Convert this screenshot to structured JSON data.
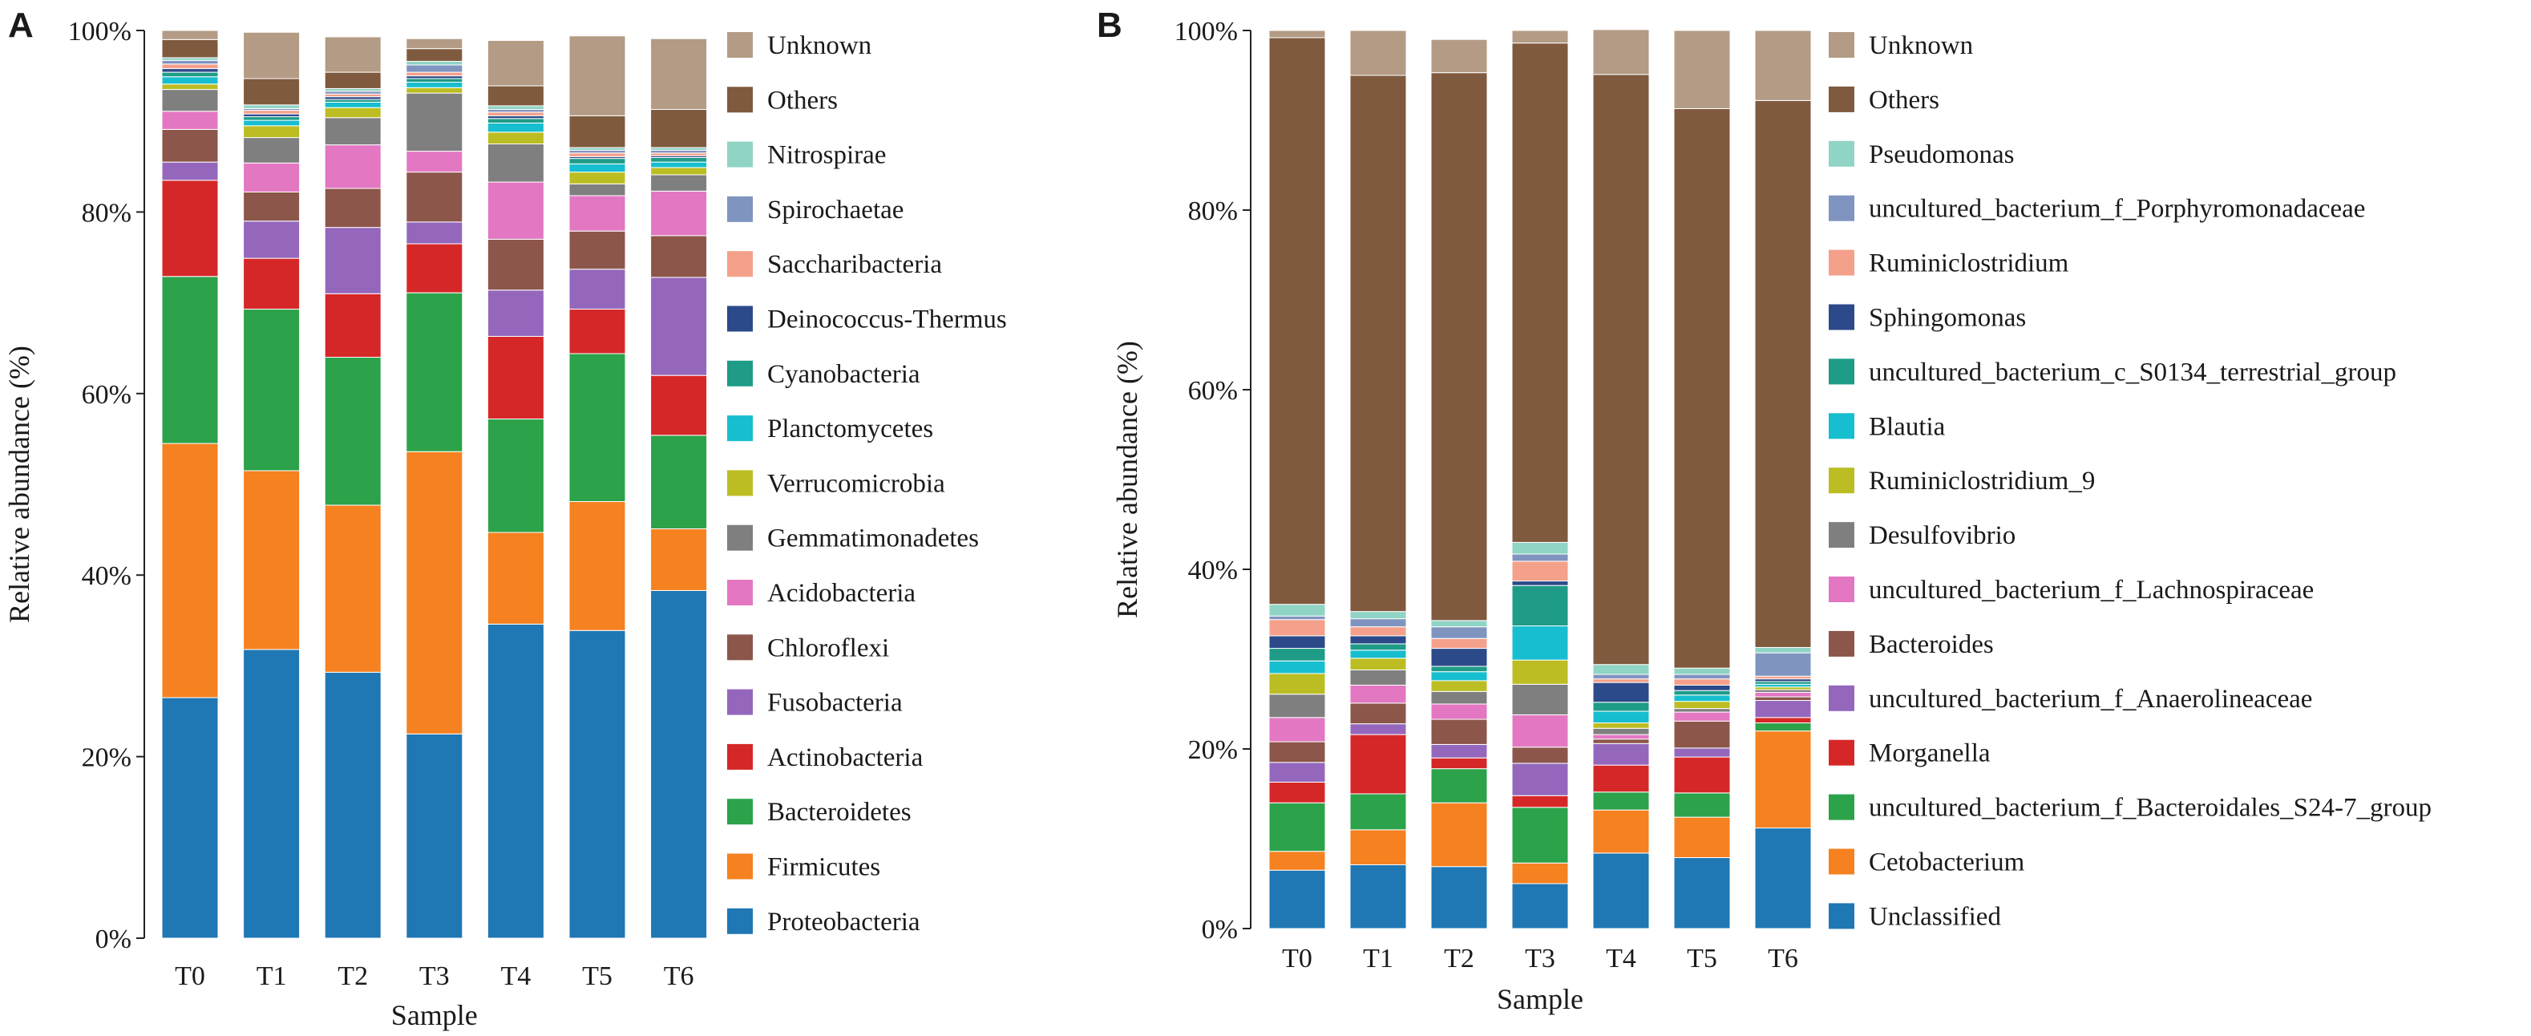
{
  "chart_data": [
    {
      "panel": "A",
      "type": "bar",
      "stacked": true,
      "xlabel": "Sample",
      "ylabel": "Relative abundance (%)",
      "ylim": [
        0,
        100
      ],
      "yticks": [
        "0%",
        "20%",
        "40%",
        "60%",
        "80%",
        "100%"
      ],
      "categories": [
        "T0",
        "T1",
        "T2",
        "T3",
        "T4",
        "T5",
        "T6"
      ],
      "series": [
        {
          "name": "Proteobacteria",
          "color": "#1f77b4",
          "values": [
            26.5,
            31.8,
            29.3,
            22.5,
            34.6,
            33.9,
            38.3
          ]
        },
        {
          "name": "Firmicutes",
          "color": "#f58120",
          "values": [
            28.0,
            19.7,
            18.4,
            31.1,
            10.1,
            14.2,
            6.8
          ]
        },
        {
          "name": "Bacteroidetes",
          "color": "#2ca24a",
          "values": [
            18.4,
            17.8,
            16.3,
            17.5,
            12.5,
            16.3,
            10.3
          ]
        },
        {
          "name": "Actinobacteria",
          "color": "#d62728",
          "values": [
            10.6,
            5.6,
            7.0,
            5.4,
            9.1,
            4.9,
            6.6
          ]
        },
        {
          "name": "Fusobacteria",
          "color": "#9467bd",
          "values": [
            2.0,
            4.1,
            7.3,
            2.4,
            5.1,
            4.4,
            10.8
          ]
        },
        {
          "name": "Chloroflexi",
          "color": "#8c564b",
          "values": [
            3.6,
            3.2,
            4.3,
            5.5,
            5.6,
            4.2,
            4.6
          ]
        },
        {
          "name": "Acidobacteria",
          "color": "#e377c2",
          "values": [
            2.0,
            3.2,
            4.8,
            2.3,
            6.3,
            3.9,
            4.9
          ]
        },
        {
          "name": "Gemmatimonadetes",
          "color": "#7f7f7f",
          "values": [
            2.4,
            2.8,
            3.0,
            6.4,
            4.2,
            1.3,
            1.8
          ]
        },
        {
          "name": "Verrucomicrobia",
          "color": "#bcbd22",
          "values": [
            0.6,
            1.3,
            1.1,
            0.6,
            1.3,
            1.3,
            0.8
          ]
        },
        {
          "name": "Planctomycetes",
          "color": "#17becf",
          "values": [
            0.8,
            0.6,
            0.6,
            0.6,
            1.0,
            0.9,
            0.6
          ]
        },
        {
          "name": "Cyanobacteria",
          "color": "#1e9c88",
          "values": [
            0.5,
            0.4,
            0.3,
            0.4,
            0.5,
            0.6,
            0.5
          ]
        },
        {
          "name": "Deinococcus-Thermus",
          "color": "#2c4a8a",
          "values": [
            0.4,
            0.3,
            0.3,
            0.3,
            0.3,
            0.2,
            0.2
          ]
        },
        {
          "name": "Saccharibacteria",
          "color": "#f4a08a",
          "values": [
            0.5,
            0.4,
            0.3,
            0.4,
            0.4,
            0.4,
            0.3
          ]
        },
        {
          "name": "Spirochaetae",
          "color": "#8094c0",
          "values": [
            0.4,
            0.2,
            0.3,
            0.8,
            0.3,
            0.3,
            0.3
          ]
        },
        {
          "name": "Nitrospirae",
          "color": "#8fd4c4",
          "values": [
            0.3,
            0.4,
            0.3,
            0.4,
            0.4,
            0.3,
            0.3
          ]
        },
        {
          "name": "Others",
          "color": "#7f5a3f",
          "values": [
            2.0,
            2.9,
            1.8,
            1.4,
            2.2,
            3.5,
            4.2
          ]
        },
        {
          "name": "Unknown",
          "color": "#b39b85",
          "values": [
            1.0,
            5.1,
            3.9,
            1.1,
            5.0,
            8.8,
            7.8
          ]
        }
      ]
    },
    {
      "panel": "B",
      "type": "bar",
      "stacked": true,
      "xlabel": "Sample",
      "ylabel": "Relative abundance (%)",
      "ylim": [
        0,
        100
      ],
      "yticks": [
        "0%",
        "20%",
        "40%",
        "60%",
        "80%",
        "100%"
      ],
      "categories": [
        "T0",
        "T1",
        "T2",
        "T3",
        "T4",
        "T5",
        "T6"
      ],
      "series": [
        {
          "name": "Unclassified",
          "color": "#1f77b4",
          "values": [
            6.5,
            7.1,
            6.9,
            5.0,
            8.4,
            7.9,
            11.2
          ]
        },
        {
          "name": "Cetobacterium",
          "color": "#f58120",
          "values": [
            2.1,
            3.9,
            7.1,
            2.3,
            4.8,
            4.5,
            10.8
          ]
        },
        {
          "name": "uncultured_bacterium_f_Bacteroidales_S24-7_group",
          "color": "#2ca24a",
          "values": [
            5.4,
            4.0,
            3.8,
            6.2,
            2.0,
            2.7,
            0.9
          ]
        },
        {
          "name": "Morganella",
          "color": "#d62728",
          "values": [
            2.3,
            6.6,
            1.2,
            1.3,
            3.0,
            4.0,
            0.6
          ]
        },
        {
          "name": "uncultured_bacterium_f_Anaerolineaceae",
          "color": "#9467bd",
          "values": [
            2.2,
            1.2,
            1.5,
            3.6,
            2.4,
            1.0,
            1.9
          ]
        },
        {
          "name": "Bacteroides",
          "color": "#8c564b",
          "values": [
            2.3,
            2.3,
            2.8,
            1.8,
            0.5,
            3.0,
            0.4
          ]
        },
        {
          "name": "uncultured_bacterium_f_Lachnospiraceae",
          "color": "#e377c2",
          "values": [
            2.7,
            2.0,
            1.7,
            3.6,
            0.5,
            1.0,
            0.5
          ]
        },
        {
          "name": "Desulfovibrio",
          "color": "#7f7f7f",
          "values": [
            2.6,
            1.7,
            1.4,
            3.4,
            0.7,
            0.4,
            0.3
          ]
        },
        {
          "name": "Ruminiclostridium_9",
          "color": "#bcbd22",
          "values": [
            2.3,
            1.3,
            1.2,
            2.7,
            0.6,
            0.8,
            0.3
          ]
        },
        {
          "name": "Blautia",
          "color": "#17becf",
          "values": [
            1.4,
            0.9,
            1.0,
            3.8,
            1.3,
            0.7,
            0.3
          ]
        },
        {
          "name": "uncultured_bacterium_c_S0134_terrestrial_group",
          "color": "#1e9c88",
          "values": [
            1.4,
            0.7,
            0.6,
            4.5,
            1.0,
            0.5,
            0.3
          ]
        },
        {
          "name": "Sphingomonas",
          "color": "#2c4a8a",
          "values": [
            1.4,
            0.9,
            2.0,
            0.5,
            2.2,
            0.6,
            0.3
          ]
        },
        {
          "name": "Ruminiclostridium",
          "color": "#f4a08a",
          "values": [
            1.8,
            1.0,
            1.1,
            2.2,
            0.4,
            0.7,
            0.3
          ]
        },
        {
          "name": "uncultured_bacterium_f_Porphyromonadaceae",
          "color": "#8094c0",
          "values": [
            0.4,
            0.9,
            1.3,
            0.8,
            0.5,
            0.5,
            2.6
          ]
        },
        {
          "name": "Pseudomonas",
          "color": "#8fd4c4",
          "values": [
            1.3,
            0.8,
            0.7,
            1.3,
            1.1,
            0.7,
            0.6
          ]
        },
        {
          "name": "Others",
          "color": "#7f5a3f",
          "values": [
            63.1,
            59.7,
            61.0,
            55.6,
            65.7,
            62.3,
            60.9
          ]
        },
        {
          "name": "Unknown",
          "color": "#b39b85",
          "values": [
            0.8,
            5.0,
            3.7,
            1.4,
            5.0,
            8.7,
            7.8
          ]
        }
      ]
    }
  ],
  "panel_labels": [
    "A",
    "B"
  ],
  "legend_A": [
    "Unknown",
    "Others",
    "Nitrospirae",
    "Spirochaetae",
    "Saccharibacteria",
    "Deinococcus-Thermus",
    "Cyanobacteria",
    "Planctomycetes",
    "Verrucomicrobia",
    "Gemmatimonadetes",
    "Acidobacteria",
    "Chloroflexi",
    "Fusobacteria",
    "Actinobacteria",
    "Bacteroidetes",
    "Firmicutes",
    "Proteobacteria"
  ],
  "legend_B": [
    "Unknown",
    "Others",
    "Pseudomonas",
    "uncultured_bacterium_f_Porphyromonadaceae",
    "Ruminiclostridium",
    "Sphingomonas",
    "uncultured_bacterium_c_S0134_terrestrial_group",
    "Blautia",
    "Ruminiclostridium_9",
    "Desulfovibrio",
    "uncultured_bacterium_f_Lachnospiraceae",
    "Bacteroides",
    "uncultured_bacterium_f_Anaerolineaceae",
    "Morganella",
    "uncultured_bacterium_f_Bacteroidales_S24-7_group",
    "Cetobacterium",
    "Unclassified"
  ]
}
